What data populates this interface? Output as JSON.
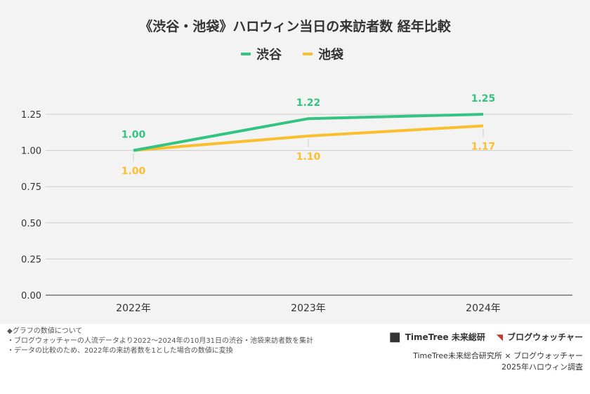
{
  "chart_data": {
    "type": "line",
    "title": "《渋谷・池袋》ハロウィン当日の来訪者数 経年比較",
    "categories": [
      "2022年",
      "2023年",
      "2024年"
    ],
    "series": [
      {
        "name": "渋谷",
        "color": "#33c481",
        "values": [
          1.0,
          1.22,
          1.25
        ],
        "labels": [
          "1.00",
          "1.22",
          "1.25"
        ]
      },
      {
        "name": "池袋",
        "color": "#fbbf2e",
        "values": [
          1.0,
          1.1,
          1.17
        ],
        "labels": [
          "1.00",
          "1.10",
          "1.17"
        ]
      }
    ],
    "ylim": [
      0,
      1.25
    ],
    "yticks": [
      "0.00",
      "0.25",
      "0.50",
      "0.75",
      "1.00",
      "1.25"
    ],
    "grid": true,
    "legend": "top"
  },
  "notes": [
    "◆グラフの数値について",
    "・ブログウォッチャーの人流データより2022〜2024年の10月31日の渋谷・池袋来訪者数を集計",
    "・データの比較のため、2022年の来訪者数を1とした場合の数値に変換"
  ],
  "credits": {
    "logo1": "TimeTree 未来総研",
    "logo2": "ブログウォッチャー",
    "line1": "TimeTree未来総合研究所 × ブログウォッチャー",
    "line2": "2025年ハロウィン調査"
  }
}
